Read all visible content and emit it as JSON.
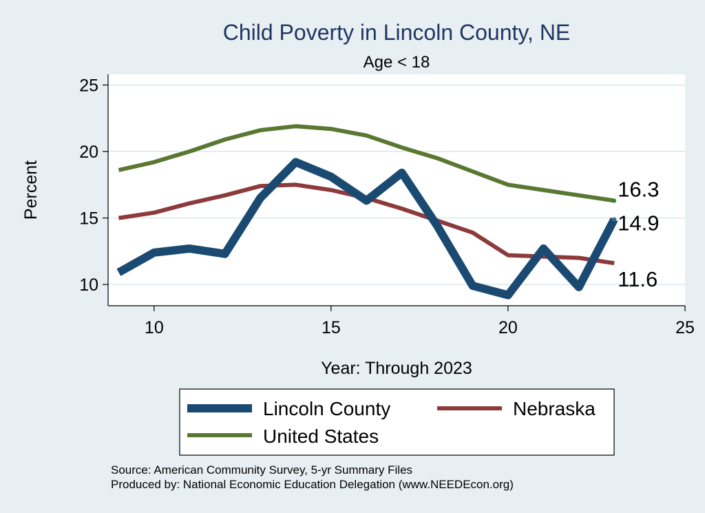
{
  "chart_data": {
    "type": "line",
    "title": "Child Poverty in Lincoln County, NE",
    "subtitle": "Age < 18",
    "xlabel": "Year: Through 2023",
    "ylabel": "Percent",
    "xlim": [
      8.7,
      25
    ],
    "ylim": [
      8.4,
      25.8
    ],
    "xticks": [
      10,
      15,
      20,
      25
    ],
    "yticks": [
      10,
      15,
      20,
      25
    ],
    "grid": true,
    "legend_position": "bottom",
    "x": [
      9,
      10,
      11,
      12,
      13,
      14,
      15,
      16,
      17,
      18,
      19,
      20,
      21,
      22,
      23
    ],
    "series": [
      {
        "name": "Lincoln County",
        "color": "#1a4a72",
        "values": [
          10.9,
          12.4,
          12.7,
          12.3,
          16.5,
          19.2,
          18.1,
          16.3,
          18.4,
          14.4,
          9.9,
          9.2,
          12.7,
          9.8,
          14.9
        ],
        "end_label": "14.9"
      },
      {
        "name": "Nebraska",
        "color": "#8c3a3c",
        "values": [
          15.0,
          15.4,
          16.1,
          16.7,
          17.4,
          17.5,
          17.1,
          16.5,
          15.7,
          14.8,
          13.9,
          12.2,
          12.1,
          12.0,
          11.6
        ],
        "end_label": "11.6"
      },
      {
        "name": "United States",
        "color": "#5a7832",
        "values": [
          18.6,
          19.2,
          20.0,
          20.9,
          21.6,
          21.9,
          21.7,
          21.2,
          20.3,
          19.5,
          18.5,
          17.5,
          17.1,
          16.7,
          16.3
        ],
        "end_label": "16.3"
      }
    ]
  },
  "footer": {
    "source": "Source: American Community Survey, 5-yr Summary Files",
    "produced_by": "Produced by: National Economic Education Delegation (www.NEEDEcon.org)"
  }
}
